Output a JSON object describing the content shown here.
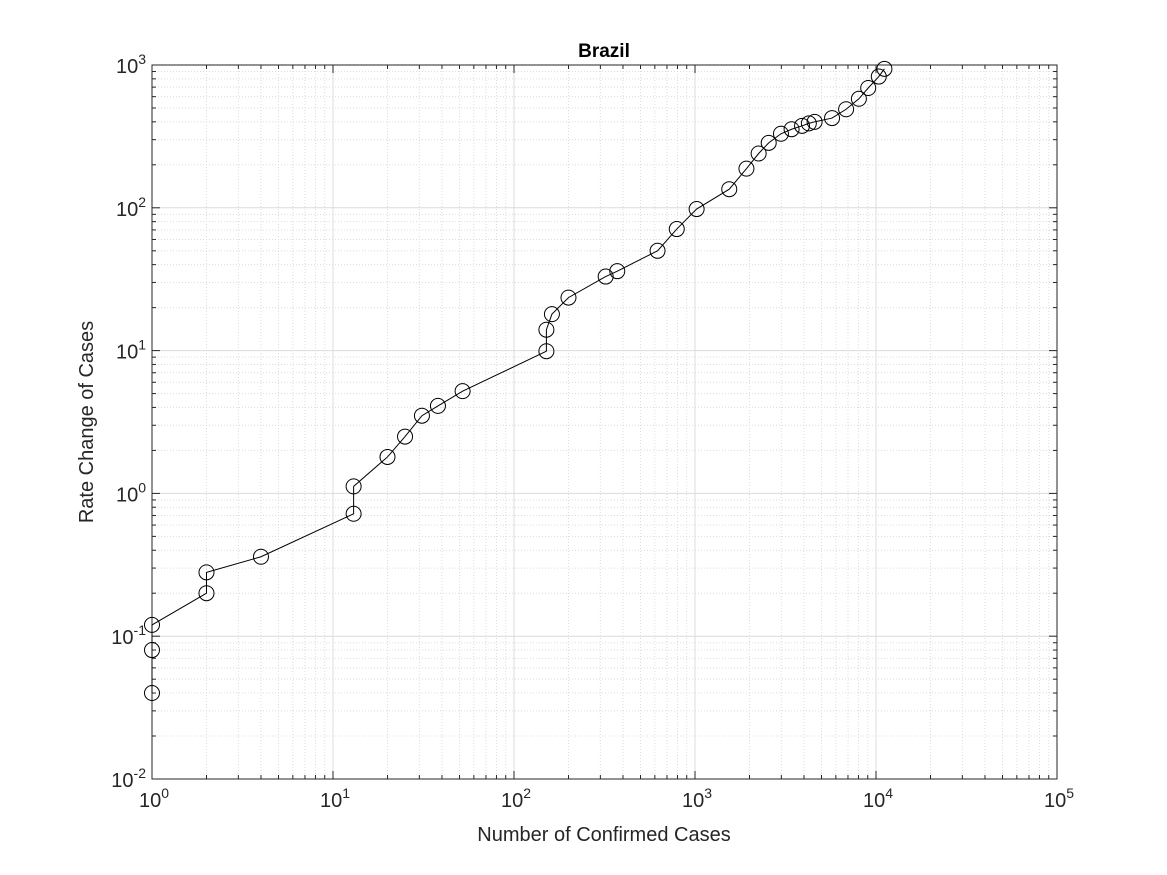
{
  "chart_data": {
    "type": "line",
    "title": "Brazil",
    "xlabel": "Number of Confirmed Cases",
    "ylabel": "Rate Change of Cases",
    "x_scale": "log",
    "y_scale": "log",
    "xlim": [
      1,
      100000
    ],
    "ylim": [
      0.01,
      1000
    ],
    "grid": "major and minor",
    "marker": "circle",
    "line_color": "#000000",
    "x_ticks": [
      {
        "base": "10",
        "exp": "0"
      },
      {
        "base": "10",
        "exp": "1"
      },
      {
        "base": "10",
        "exp": "2"
      },
      {
        "base": "10",
        "exp": "3"
      },
      {
        "base": "10",
        "exp": "4"
      },
      {
        "base": "10",
        "exp": "5"
      }
    ],
    "y_ticks": [
      {
        "base": "10",
        "exp": "-2"
      },
      {
        "base": "10",
        "exp": "-1"
      },
      {
        "base": "10",
        "exp": "0"
      },
      {
        "base": "10",
        "exp": "1"
      },
      {
        "base": "10",
        "exp": "2"
      },
      {
        "base": "10",
        "exp": "3"
      }
    ],
    "series": [
      {
        "x": [
          1,
          1,
          1,
          2,
          2,
          4,
          13,
          13,
          20,
          25,
          31,
          38,
          52,
          151,
          151,
          162,
          200,
          321,
          372,
          621,
          793,
          1021,
          1546,
          1924,
          2247,
          2554,
          2985,
          3417,
          3904,
          4256,
          4579,
          5717,
          6836,
          8044,
          9056,
          10360,
          11130
        ],
        "y": [
          0.04,
          0.08,
          0.12,
          0.2,
          0.28,
          0.36,
          0.72,
          1.12,
          1.8,
          2.5,
          3.5,
          4.1,
          5.2,
          9.9,
          14,
          18,
          23.5,
          33,
          36,
          50,
          71,
          98,
          135,
          188,
          240,
          285,
          330,
          355,
          375,
          390,
          400,
          425,
          490,
          580,
          690,
          830,
          940
        ]
      }
    ]
  }
}
